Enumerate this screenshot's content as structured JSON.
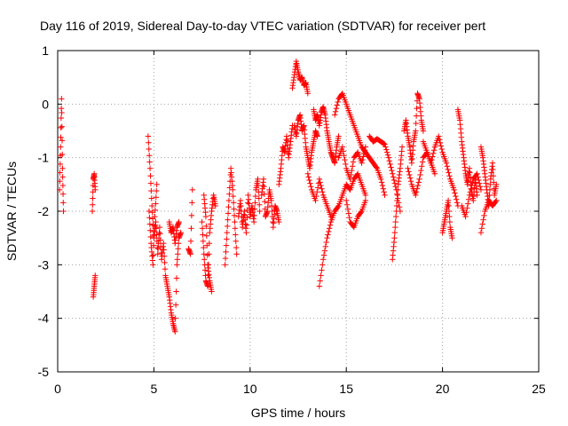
{
  "chart_data": {
    "type": "scatter",
    "title": "Day 116 of 2019, Sidereal Day-to-day VTEC variation (SDTVAR) for receiver pert",
    "xlabel": "GPS time / hours",
    "ylabel": "SDTVAR / TECUs",
    "xlim": [
      0,
      25
    ],
    "ylim": [
      -5,
      1
    ],
    "xticks": [
      "0",
      "5",
      "10",
      "15",
      "20",
      "25"
    ],
    "yticks": [
      "1",
      "0",
      "-1",
      "-2",
      "-3",
      "-4",
      "-5"
    ],
    "grid": true,
    "marker": "+",
    "color": "#ff0000",
    "series": [
      {
        "name": "SDTVAR",
        "segments": [
          {
            "x": [
              0.1,
              0.15,
              0.2,
              0.25,
              0.3
            ],
            "y": [
              -1.6,
              -0.8,
              0.1,
              -1.2,
              -2.0
            ]
          },
          {
            "x": [
              1.8,
              1.85,
              1.9,
              1.95
            ],
            "y": [
              -2.0,
              -1.4,
              -1.3,
              -1.6
            ]
          },
          {
            "x": [
              1.85,
              1.9,
              1.95
            ],
            "y": [
              -3.6,
              -3.4,
              -3.2
            ]
          },
          {
            "x": [
              4.7,
              4.8,
              4.9,
              5.0,
              5.1,
              5.2,
              5.3,
              5.4,
              5.5,
              5.6,
              5.7,
              5.8,
              5.9,
              6.0,
              6.1,
              6.2,
              6.3,
              6.4
            ],
            "y": [
              -0.6,
              -1.2,
              -1.9,
              -2.5,
              -2.2,
              -2.8,
              -2.3,
              -2.9,
              -2.6,
              -3.2,
              -3.4,
              -3.6,
              -3.9,
              -4.1,
              -4.25,
              -3.0,
              -2.5,
              -2.4
            ]
          },
          {
            "x": [
              4.75,
              4.85,
              4.95,
              5.05,
              5.15
            ],
            "y": [
              -2.0,
              -2.6,
              -3.0,
              -2.1,
              -1.5
            ]
          },
          {
            "x": [
              5.8,
              5.9,
              6.0,
              6.1,
              6.2,
              6.3
            ],
            "y": [
              -2.2,
              -2.4,
              -2.3,
              -2.6,
              -2.3,
              -2.2
            ]
          },
          {
            "x": [
              6.8,
              6.9,
              7.0
            ],
            "y": [
              -2.7,
              -2.8,
              -1.6
            ]
          },
          {
            "x": [
              7.5,
              7.6,
              7.7,
              7.8,
              7.9,
              8.0,
              8.1,
              8.2
            ],
            "y": [
              -2.2,
              -2.8,
              -3.3,
              -3.4,
              -2.4,
              -2.0,
              -1.7,
              -1.9
            ]
          },
          {
            "x": [
              7.6,
              7.7,
              7.8,
              7.9,
              8.0
            ],
            "y": [
              -1.7,
              -2.1,
              -3.0,
              -3.3,
              -3.5
            ]
          },
          {
            "x": [
              8.7,
              8.8,
              8.9,
              9.0,
              9.1,
              9.2,
              9.3
            ],
            "y": [
              -3.0,
              -2.4,
              -1.8,
              -1.2,
              -1.6,
              -2.2,
              -2.8
            ]
          },
          {
            "x": [
              9.4,
              9.5,
              9.6,
              9.7,
              9.8,
              9.9,
              10.0,
              10.1,
              10.2,
              10.3,
              10.4,
              10.5
            ],
            "y": [
              -2.1,
              -1.8,
              -2.3,
              -2.0,
              -2.4,
              -1.7,
              -2.1,
              -1.9,
              -2.2,
              -1.6,
              -1.4,
              -2.0
            ]
          },
          {
            "x": [
              10.6,
              10.7,
              10.8,
              10.9,
              11.0,
              11.1,
              11.2,
              11.3,
              11.4,
              11.5
            ],
            "y": [
              -1.7,
              -1.4,
              -2.1,
              -2.0,
              -1.6,
              -1.8,
              -2.3,
              -1.9,
              -2.0,
              -2.2
            ]
          },
          {
            "x": [
              11.5,
              11.6,
              11.7,
              11.8,
              11.9,
              12.0,
              12.1,
              12.2
            ],
            "y": [
              -1.5,
              -1.2,
              -0.8,
              -0.9,
              -0.6,
              -1.0,
              -0.7,
              -0.4
            ]
          },
          {
            "x": [
              12.2,
              12.3,
              12.4,
              12.5,
              12.6,
              12.7,
              12.8,
              12.9,
              13.0
            ],
            "y": [
              0.3,
              0.55,
              0.8,
              0.6,
              0.45,
              0.5,
              0.35,
              0.4,
              0.2
            ]
          },
          {
            "x": [
              12.3,
              12.4,
              12.5,
              12.6,
              12.7,
              12.8,
              12.9,
              13.0,
              13.1,
              13.2,
              13.3,
              13.4,
              13.5
            ],
            "y": [
              -0.4,
              -0.6,
              -0.3,
              -0.2,
              -0.5,
              -0.4,
              -0.8,
              -1.0,
              -1.2,
              -0.9,
              -0.7,
              -0.5,
              -0.6
            ]
          },
          {
            "x": [
              13.3,
              13.4,
              13.5,
              13.6,
              13.7,
              13.8,
              13.9,
              14.0,
              14.1,
              14.2,
              14.3,
              14.4,
              14.5,
              14.6
            ],
            "y": [
              -0.1,
              -0.3,
              -0.2,
              -0.4,
              -0.15,
              -0.05,
              -0.2,
              -0.5,
              -0.7,
              -0.9,
              -1.0,
              -1.1,
              -0.8,
              -0.6
            ]
          },
          {
            "x": [
              13.6,
              13.8,
              14.0,
              14.2,
              14.4,
              14.6,
              14.8,
              15.0,
              15.2,
              15.4,
              15.6,
              15.8,
              16.0
            ],
            "y": [
              -3.4,
              -2.9,
              -2.5,
              -2.2,
              -2.0,
              -1.9,
              -1.7,
              -1.5,
              -1.6,
              -1.4,
              -1.3,
              -1.5,
              -1.7
            ]
          },
          {
            "x": [
              13.0,
              13.2,
              13.4,
              13.6,
              13.8,
              14.0,
              14.2
            ],
            "y": [
              -1.3,
              -1.6,
              -1.8,
              -1.4,
              -1.7,
              -1.9,
              -2.1
            ]
          },
          {
            "x": [
              14.4,
              14.6,
              14.8,
              15.0,
              15.2,
              15.4,
              15.6,
              15.8,
              16.0,
              16.2,
              16.4,
              16.6,
              16.8,
              17.0
            ],
            "y": [
              -0.2,
              0.1,
              0.2,
              0.0,
              -0.2,
              -0.4,
              -0.6,
              -0.8,
              -0.9,
              -1.0,
              -1.1,
              -1.2,
              -1.4,
              -1.7
            ]
          },
          {
            "x": [
              14.6,
              14.8,
              15.0,
              15.2,
              15.4,
              15.6,
              15.8,
              16.0
            ],
            "y": [
              -1.0,
              -0.8,
              -1.2,
              -1.4,
              -1.0,
              -0.9,
              -1.1,
              -0.8
            ]
          },
          {
            "x": [
              15.0,
              15.2,
              15.4,
              15.6,
              15.8,
              16.0
            ],
            "y": [
              -1.8,
              -2.2,
              -2.3,
              -2.1,
              -2.0,
              -1.8
            ]
          },
          {
            "x": [
              16.2,
              16.4,
              16.6,
              16.8,
              17.0,
              17.2,
              17.4,
              17.6,
              17.8
            ],
            "y": [
              -0.6,
              -0.7,
              -0.65,
              -0.7,
              -0.75,
              -1.0,
              -1.3,
              -1.6,
              -2.0
            ]
          },
          {
            "x": [
              17.4,
              17.5,
              17.6,
              17.7,
              17.8,
              17.9
            ],
            "y": [
              -2.9,
              -2.5,
              -2.0,
              -1.5,
              -1.2,
              -0.8
            ]
          },
          {
            "x": [
              18.0,
              18.1,
              18.2,
              18.3,
              18.4,
              18.5,
              18.6,
              18.7,
              18.8,
              18.9,
              19.0
            ],
            "y": [
              -0.5,
              -0.3,
              -0.6,
              -0.8,
              -1.1,
              -0.7,
              -0.5,
              0.2,
              0.1,
              -0.3,
              -0.5
            ]
          },
          {
            "x": [
              18.2,
              18.4,
              18.6,
              18.8,
              19.0,
              19.2,
              19.4,
              19.6
            ],
            "y": [
              -1.2,
              -1.5,
              -1.7,
              -1.4,
              -1.0,
              -0.9,
              -1.1,
              -1.3
            ]
          },
          {
            "x": [
              19.0,
              19.2,
              19.4,
              19.6,
              19.8,
              20.0,
              20.2,
              20.4,
              20.6,
              20.8
            ],
            "y": [
              -0.7,
              -0.9,
              -1.1,
              -0.8,
              -0.6,
              -0.9,
              -1.1,
              -1.4,
              -1.6,
              -1.9
            ]
          },
          {
            "x": [
              20.0,
              20.1,
              20.2,
              20.3,
              20.4,
              20.5
            ],
            "y": [
              -2.4,
              -2.2,
              -2.0,
              -1.8,
              -2.3,
              -2.5
            ]
          },
          {
            "x": [
              20.8,
              20.9,
              21.0,
              21.1,
              21.2,
              21.3,
              21.4,
              21.5,
              21.6,
              21.7,
              21.8
            ],
            "y": [
              -0.1,
              -0.3,
              -0.7,
              -1.0,
              -1.3,
              -1.5,
              -1.2,
              -1.6,
              -1.8,
              -1.4,
              -1.7
            ]
          },
          {
            "x": [
              21.0,
              21.2,
              21.4,
              21.6,
              21.8,
              22.0
            ],
            "y": [
              -1.9,
              -2.1,
              -1.7,
              -1.4,
              -1.3,
              -1.6
            ]
          },
          {
            "x": [
              22.0,
              22.1,
              22.2,
              22.3,
              22.4,
              22.5,
              22.6,
              22.7,
              22.8
            ],
            "y": [
              -0.8,
              -1.0,
              -1.3,
              -1.6,
              -1.9,
              -1.4,
              -1.1,
              -1.7,
              -1.5
            ]
          },
          {
            "x": [
              22.0,
              22.2,
              22.4,
              22.6,
              22.8
            ],
            "y": [
              -2.4,
              -2.0,
              -1.8,
              -1.9,
              -1.8
            ]
          }
        ]
      }
    ]
  }
}
